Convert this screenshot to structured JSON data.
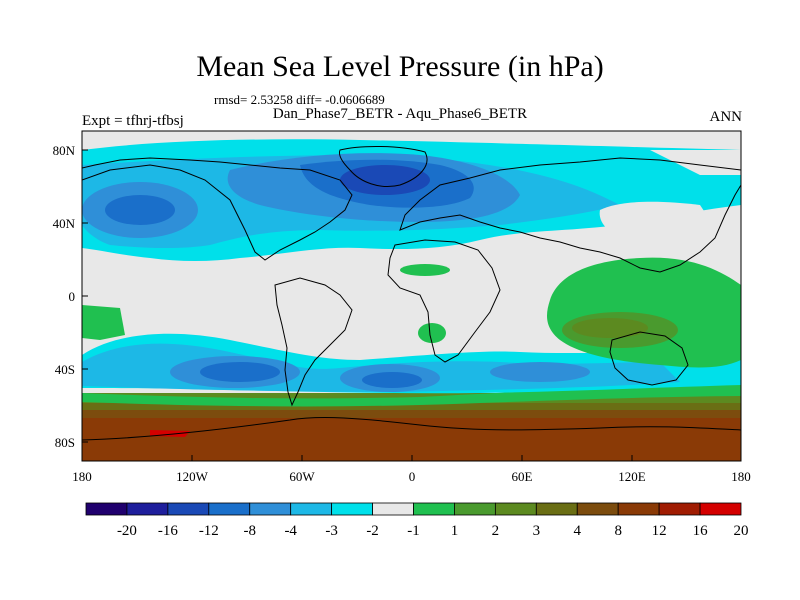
{
  "plot": {
    "title": "Mean Sea Level Pressure (in hPa)",
    "stats": "rmsd= 2.53258 diff= -0.0606689",
    "subtitle": "Dan_Phase7_BETR - Aqu_Phase6_BETR",
    "left_label": "Expt = tfhrj-tfbsj",
    "right_label": "ANN"
  },
  "axes": {
    "lat_ticks": [
      "80N",
      "40N",
      "0",
      "40S",
      "80S"
    ],
    "lon_ticks": [
      "180",
      "120W",
      "60W",
      "0",
      "60E",
      "120E",
      "180"
    ]
  },
  "colorbar": {
    "colors": [
      "#20006e",
      "#1e1e9c",
      "#1a49b6",
      "#1a6fca",
      "#2f8fd8",
      "#1db8e6",
      "#00e0ea",
      "#e8e8e8",
      "#20c050",
      "#4a9a2e",
      "#5c8a20",
      "#6a6e14",
      "#7c4c0e",
      "#8a3a06",
      "#a01c02",
      "#d40000"
    ],
    "labels": [
      "-20",
      "-16",
      "-12",
      "-8",
      "-4",
      "-3",
      "-2",
      "-1",
      "1",
      "2",
      "3",
      "4",
      "8",
      "12",
      "16",
      "20"
    ]
  }
}
